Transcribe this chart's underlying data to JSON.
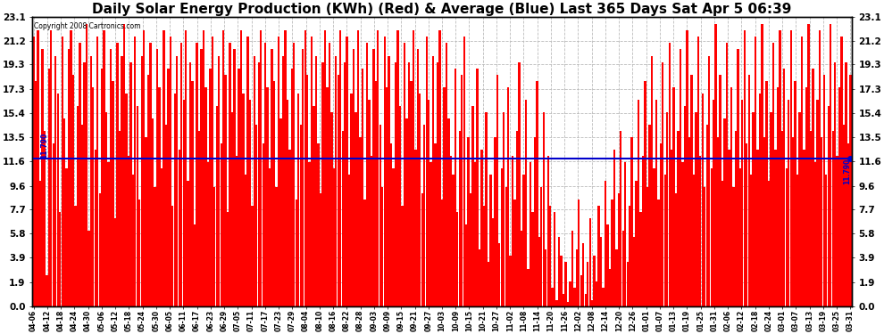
{
  "title": "Daily Solar Energy Production (KWh) (Red) & Average (Blue) Last 365 Days Sat Apr 5 06:39",
  "copyright_text": "Copyright 2008 Cartronics.com",
  "average_value": 11.79,
  "average_label": "11.790",
  "yticks": [
    0.0,
    1.9,
    3.9,
    5.8,
    7.7,
    9.6,
    11.6,
    13.5,
    15.4,
    17.3,
    19.3,
    21.2,
    23.1
  ],
  "ymax": 23.1,
  "ymin": 0.0,
  "bar_color": "#FF0000",
  "avg_line_color": "#0000CC",
  "background_color": "#FFFFFF",
  "grid_color": "#BBBBBB",
  "title_fontsize": 11,
  "xtick_labels": [
    "04-06",
    "04-12",
    "04-18",
    "04-24",
    "04-30",
    "05-06",
    "05-12",
    "05-18",
    "05-24",
    "05-30",
    "06-05",
    "06-11",
    "06-17",
    "06-23",
    "06-29",
    "07-05",
    "07-11",
    "07-17",
    "07-23",
    "07-29",
    "08-04",
    "08-10",
    "08-16",
    "08-22",
    "08-28",
    "09-03",
    "09-09",
    "09-15",
    "09-21",
    "09-27",
    "10-03",
    "10-09",
    "10-15",
    "10-21",
    "10-27",
    "11-02",
    "11-08",
    "11-14",
    "11-20",
    "11-26",
    "12-02",
    "12-08",
    "12-14",
    "12-20",
    "12-26",
    "01-01",
    "01-07",
    "01-13",
    "01-19",
    "01-25",
    "01-31",
    "02-06",
    "02-12",
    "02-18",
    "02-24",
    "03-01",
    "03-07",
    "03-13",
    "03-19",
    "03-25",
    "03-31"
  ],
  "values": [
    21.5,
    18.0,
    22.0,
    10.0,
    20.5,
    14.0,
    2.5,
    19.0,
    22.0,
    13.0,
    20.0,
    17.0,
    7.5,
    21.5,
    15.0,
    11.0,
    20.5,
    22.0,
    18.5,
    8.0,
    16.0,
    21.0,
    14.5,
    19.5,
    22.5,
    6.0,
    20.0,
    17.5,
    12.5,
    21.5,
    9.0,
    19.0,
    22.0,
    15.5,
    11.5,
    20.5,
    18.0,
    7.0,
    21.0,
    14.0,
    20.0,
    22.5,
    17.0,
    12.0,
    19.5,
    10.5,
    21.5,
    16.0,
    8.5,
    20.0,
    22.0,
    13.5,
    18.5,
    21.0,
    15.0,
    9.5,
    20.5,
    17.5,
    11.0,
    22.0,
    14.5,
    19.0,
    21.5,
    8.0,
    17.0,
    20.0,
    12.5,
    21.0,
    16.5,
    22.0,
    10.0,
    19.5,
    18.0,
    6.5,
    21.0,
    14.0,
    20.5,
    22.0,
    17.5,
    11.5,
    19.0,
    21.5,
    9.5,
    16.0,
    20.0,
    13.0,
    22.0,
    18.5,
    7.5,
    21.0,
    15.5,
    20.5,
    12.0,
    19.0,
    22.0,
    17.0,
    10.5,
    21.5,
    16.5,
    8.0,
    20.0,
    14.5,
    19.5,
    22.0,
    13.0,
    21.0,
    17.5,
    11.0,
    20.5,
    18.0,
    9.5,
    21.5,
    15.0,
    20.0,
    22.0,
    16.5,
    12.5,
    19.0,
    21.0,
    8.5,
    17.0,
    14.5,
    20.5,
    22.0,
    18.5,
    11.5,
    21.5,
    16.0,
    20.0,
    13.0,
    9.0,
    19.5,
    22.0,
    17.5,
    21.0,
    15.5,
    11.0,
    20.0,
    18.5,
    22.0,
    14.0,
    19.5,
    21.5,
    10.5,
    17.0,
    20.5,
    15.5,
    22.0,
    13.5,
    19.0,
    8.5,
    21.0,
    16.5,
    12.0,
    20.5,
    18.0,
    22.0,
    14.5,
    9.5,
    21.5,
    17.5,
    20.0,
    13.0,
    11.0,
    19.5,
    22.0,
    16.0,
    8.0,
    21.0,
    15.0,
    19.5,
    18.0,
    22.0,
    12.5,
    20.5,
    17.0,
    9.0,
    14.5,
    21.5,
    16.5,
    11.5,
    20.0,
    13.0,
    19.5,
    22.0,
    8.5,
    17.5,
    21.0,
    15.0,
    12.0,
    10.5,
    19.0,
    7.5,
    14.0,
    18.5,
    21.5,
    6.5,
    13.5,
    9.0,
    16.0,
    11.5,
    19.0,
    4.5,
    12.5,
    8.0,
    15.5,
    3.5,
    10.5,
    7.0,
    13.5,
    18.5,
    5.0,
    11.0,
    15.5,
    9.5,
    17.5,
    4.0,
    12.0,
    8.5,
    14.0,
    19.5,
    6.0,
    10.5,
    16.5,
    3.0,
    11.5,
    7.5,
    13.5,
    18.0,
    5.5,
    9.5,
    15.5,
    4.5,
    12.0,
    8.0,
    1.5,
    7.5,
    0.5,
    5.5,
    4.0,
    1.0,
    3.5,
    0.3,
    2.0,
    6.0,
    1.5,
    4.5,
    8.5,
    2.5,
    5.0,
    1.0,
    3.5,
    7.0,
    0.5,
    4.0,
    2.0,
    8.0,
    5.5,
    1.5,
    10.0,
    6.5,
    3.0,
    8.5,
    12.5,
    4.5,
    9.0,
    14.0,
    6.0,
    11.5,
    3.5,
    8.0,
    13.5,
    5.5,
    10.0,
    16.5,
    7.5,
    12.0,
    18.0,
    9.5,
    14.5,
    20.0,
    11.0,
    16.5,
    8.5,
    13.0,
    19.5,
    10.5,
    15.5,
    21.0,
    12.5,
    17.5,
    9.0,
    14.0,
    20.5,
    11.5,
    16.0,
    22.0,
    13.5,
    18.5,
    10.5,
    15.5,
    21.5,
    12.0,
    17.0,
    9.5,
    14.5,
    20.0,
    11.0,
    16.5,
    22.5,
    13.5,
    18.5,
    10.0,
    15.0,
    21.0,
    12.5,
    17.5,
    9.5,
    14.0,
    20.5,
    11.0,
    16.5,
    22.0,
    13.0,
    18.5,
    10.5,
    15.5,
    21.5,
    12.5,
    17.0,
    22.5,
    13.5,
    18.0,
    10.0,
    15.5,
    21.0,
    12.5,
    17.5,
    22.0,
    14.0,
    19.0,
    11.0,
    16.5,
    22.0,
    13.5,
    18.0,
    10.5,
    15.5,
    21.5,
    12.5,
    17.5,
    22.5,
    14.0,
    19.0,
    11.5,
    16.5,
    22.0,
    13.5,
    18.5,
    10.5,
    16.0,
    22.5,
    14.0,
    19.5,
    12.0,
    17.5,
    21.5,
    14.5,
    19.5,
    13.0,
    18.5
  ]
}
